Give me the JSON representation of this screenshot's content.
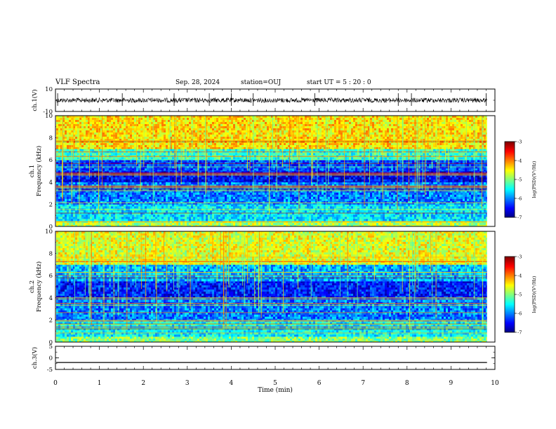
{
  "header": {
    "title": "VLF Spectra",
    "date": "Sep. 28, 2024",
    "station": "station=OUJ",
    "start_time": "start UT =  5 : 20 : 0"
  },
  "chart_data": [
    {
      "type": "line",
      "panel": "ch1-waveform",
      "ylabel": "ch.1(V)",
      "ylim": [
        -10,
        10
      ],
      "yticks": [
        "10",
        "-10"
      ],
      "xlim": [
        0,
        10
      ],
      "series": [
        {
          "baseline": 0,
          "noise_amplitude": 1.5,
          "spike_times_min": [
            0.05,
            1.52,
            2.7,
            3.5,
            4.0,
            4.5,
            5.9,
            7.8,
            8.1,
            9.8
          ],
          "end_time_min": 9.82
        }
      ]
    },
    {
      "type": "heatmap",
      "panel": "ch1-spectrogram",
      "ylabel": "ch.1 Frequency (kHz)",
      "ylim": [
        0,
        10
      ],
      "yticks": [
        "0",
        "2",
        "4",
        "6",
        "8",
        "10"
      ],
      "xlim": [
        0,
        10
      ],
      "data_end_min": 9.82,
      "colorbar": {
        "label": "log(PSD)(V²/Hz)",
        "range": [
          -7,
          -3
        ],
        "ticks": [
          "-3",
          "-4",
          "-5",
          "-6",
          "-7"
        ]
      },
      "bands": [
        {
          "from_khz": 0,
          "to_khz": 0.5,
          "level": -4.8
        },
        {
          "from_khz": 0.5,
          "to_khz": 2,
          "level": -5.6
        },
        {
          "from_khz": 2,
          "to_khz": 4,
          "level": -6.0
        },
        {
          "from_khz": 4,
          "to_khz": 5,
          "level": -6.5
        },
        {
          "from_khz": 5,
          "to_khz": 6,
          "level": -6.2
        },
        {
          "from_khz": 6,
          "to_khz": 7,
          "level": -5.3
        },
        {
          "from_khz": 7,
          "to_khz": 10,
          "level": -4.4
        }
      ]
    },
    {
      "type": "heatmap",
      "panel": "ch2-spectrogram",
      "ylabel": "ch.2 Frequency (kHz)",
      "ylim": [
        0,
        10
      ],
      "yticks": [
        "0",
        "2",
        "4",
        "6",
        "8",
        "10"
      ],
      "xlim": [
        0,
        10
      ],
      "data_end_min": 9.82,
      "colorbar": {
        "label": "log(PSD)(V²/Hz)",
        "range": [
          -7,
          -3
        ],
        "ticks": [
          "-3",
          "-4",
          "-5",
          "-6",
          "-7"
        ]
      },
      "bands": [
        {
          "from_khz": 0,
          "to_khz": 0.5,
          "level": -5.0
        },
        {
          "from_khz": 0.5,
          "to_khz": 2,
          "level": -5.5
        },
        {
          "from_khz": 2,
          "to_khz": 4,
          "level": -6.0
        },
        {
          "from_khz": 4,
          "to_khz": 5.5,
          "level": -6.4
        },
        {
          "from_khz": 5.5,
          "to_khz": 7,
          "level": -5.8
        },
        {
          "from_khz": 7,
          "to_khz": 10,
          "level": -4.6
        }
      ]
    },
    {
      "type": "line",
      "panel": "ch3-waveform",
      "ylabel": "ch.3(V)",
      "ylim": [
        -5,
        5
      ],
      "yticks": [
        "5",
        "0",
        "-5"
      ],
      "xlim": [
        0,
        10
      ],
      "xlabel": "Time (min)",
      "xticks": [
        "0",
        "1",
        "2",
        "3",
        "4",
        "5",
        "6",
        "7",
        "8",
        "9",
        "10"
      ],
      "series": [
        {
          "constant_value": -2,
          "end_time_min": 9.82
        }
      ]
    }
  ],
  "colors": {
    "axis": "#000000",
    "background": "#ffffff",
    "waveform": "#000000"
  }
}
